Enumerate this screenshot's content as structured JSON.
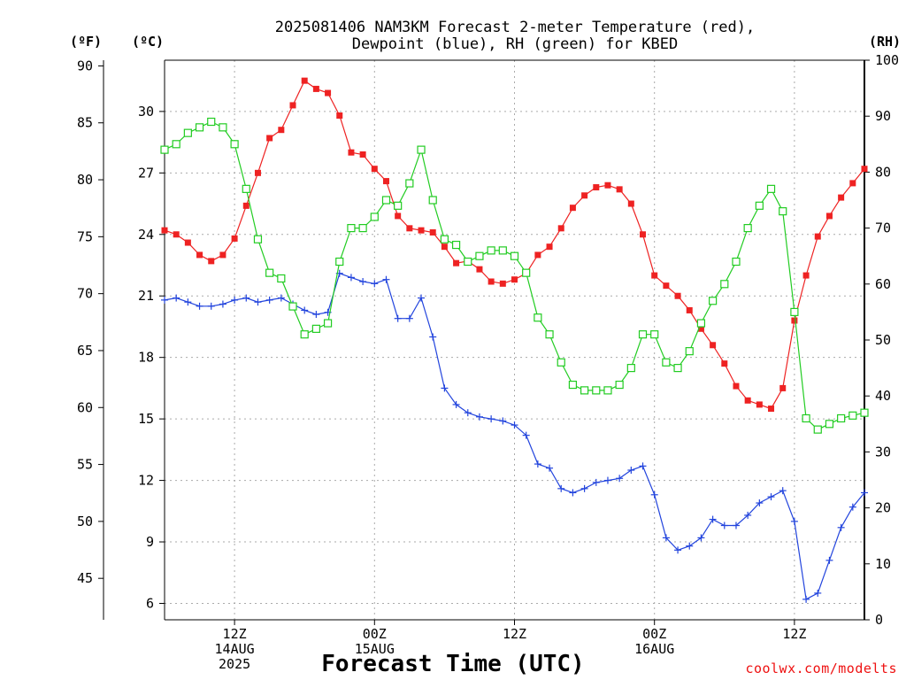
{
  "chart_data": {
    "type": "line",
    "title_lines": [
      "2025081406 NAM3KM Forecast 2-meter Temperature (red),",
      "Dewpoint (blue), RH (green) for KBED"
    ],
    "xlabel": "Forecast Time (UTC)",
    "credit": "coolwx.com/modelts",
    "units": {
      "fahrenheit": "(ºF)",
      "celsius": "(ºC)",
      "rh": "(RH)"
    },
    "x_start_hour": 0,
    "x_end_hour": 60,
    "x_ticks": [
      {
        "hour": 6,
        "lines": [
          "12Z",
          "14AUG",
          "2025"
        ]
      },
      {
        "hour": 18,
        "lines": [
          "00Z",
          "15AUG"
        ]
      },
      {
        "hour": 30,
        "lines": [
          "12Z"
        ]
      },
      {
        "hour": 42,
        "lines": [
          "00Z",
          "16AUG"
        ]
      },
      {
        "hour": 54,
        "lines": [
          "12Z"
        ]
      }
    ],
    "y_celsius": {
      "min": 5.2,
      "max": 32.5,
      "ticks": [
        6,
        9,
        12,
        15,
        18,
        21,
        24,
        27,
        30
      ]
    },
    "y_fahrenheit_ticks": [
      45,
      50,
      55,
      60,
      65,
      70,
      75,
      80,
      85,
      90
    ],
    "y_rh": {
      "min": 0,
      "max": 100,
      "ticks": [
        0,
        10,
        20,
        30,
        40,
        50,
        60,
        70,
        80,
        90,
        100
      ]
    },
    "grid": true,
    "x_hours": [
      0,
      1,
      2,
      3,
      4,
      5,
      6,
      7,
      8,
      9,
      10,
      11,
      12,
      13,
      14,
      15,
      16,
      17,
      18,
      19,
      20,
      21,
      22,
      23,
      24,
      25,
      26,
      27,
      28,
      29,
      30,
      31,
      32,
      33,
      34,
      35,
      36,
      37,
      38,
      39,
      40,
      41,
      42,
      43,
      44,
      45,
      46,
      47,
      48,
      49,
      50,
      51,
      52,
      53,
      54,
      55,
      56,
      57,
      58,
      59,
      60
    ],
    "series": [
      {
        "name": "2-meter Temperature",
        "axis": "celsius",
        "color": "#ee2222",
        "marker": "filled-square",
        "values": [
          24.2,
          24.0,
          23.6,
          23.0,
          22.7,
          23.0,
          23.8,
          25.4,
          27.0,
          28.7,
          29.1,
          30.3,
          31.5,
          31.1,
          30.9,
          29.8,
          28.0,
          27.9,
          27.2,
          26.6,
          24.9,
          24.3,
          24.2,
          24.1,
          23.4,
          22.6,
          22.7,
          22.3,
          21.7,
          21.6,
          21.8,
          22.1,
          23.0,
          23.4,
          24.3,
          25.3,
          25.9,
          26.3,
          26.4,
          26.2,
          25.5,
          24.0,
          22.0,
          21.5,
          21.0,
          20.3,
          19.4,
          18.6,
          17.7,
          16.6,
          15.9,
          15.7,
          15.5,
          16.5,
          19.8,
          22.0,
          23.9,
          24.9,
          25.8,
          26.5,
          27.2
        ]
      },
      {
        "name": "Dewpoint",
        "axis": "celsius",
        "color": "#2244dd",
        "marker": "plus",
        "values": [
          20.8,
          20.9,
          20.7,
          20.5,
          20.5,
          20.6,
          20.8,
          20.9,
          20.7,
          20.8,
          20.9,
          20.6,
          20.3,
          20.1,
          20.2,
          22.1,
          21.9,
          21.7,
          21.6,
          21.8,
          19.9,
          19.9,
          20.9,
          19.0,
          16.5,
          15.7,
          15.3,
          15.1,
          15.0,
          14.9,
          14.7,
          14.2,
          12.8,
          12.6,
          11.6,
          11.4,
          11.6,
          11.9,
          12.0,
          12.1,
          12.5,
          12.7,
          11.3,
          9.2,
          8.6,
          8.8,
          9.2,
          10.1,
          9.8,
          9.8,
          10.3,
          10.9,
          11.2,
          11.5,
          10.0,
          6.2,
          6.5,
          8.1,
          9.7,
          10.7,
          11.4
        ]
      },
      {
        "name": "RH",
        "axis": "rh",
        "color": "#22cc22",
        "marker": "open-square",
        "values": [
          84,
          85,
          87,
          88,
          89,
          88,
          85,
          77,
          68,
          62,
          61,
          56,
          51,
          52,
          53,
          64,
          70,
          70,
          72,
          75,
          74,
          78,
          84,
          75,
          68,
          67,
          64,
          65,
          66,
          66,
          65,
          62,
          54,
          51,
          46,
          42,
          41,
          41,
          41,
          42,
          45,
          51,
          51,
          46,
          45,
          48,
          53,
          57,
          60,
          64,
          70,
          74,
          77,
          73,
          55,
          36,
          34,
          35,
          36,
          36.5,
          37
        ]
      }
    ]
  }
}
